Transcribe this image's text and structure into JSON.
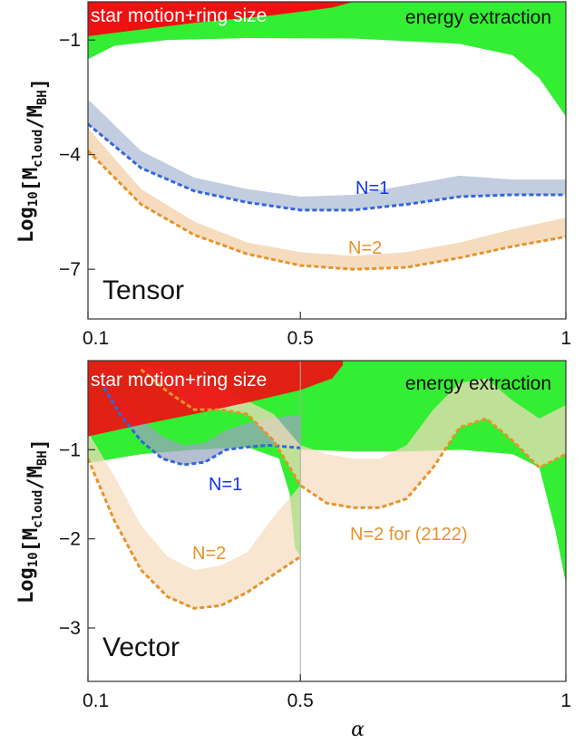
{
  "chart_data": [
    {
      "type": "area",
      "panel_name": "Tensor",
      "xlabel": "",
      "ylabel": {
        "prefix": "Log",
        "sub1": "10",
        "mid": "[M",
        "sub2": "cloud",
        "slash": "/M",
        "sub3": "BH",
        "suffix": "]"
      },
      "xlim": [
        0.1,
        1.0
      ],
      "ylim": [
        -8.3,
        0.0
      ],
      "xticks": [
        0.1,
        0.5,
        1
      ],
      "xtick_labels": [
        "0.1",
        "0.5",
        "1"
      ],
      "yticks": [
        -1,
        -4,
        -7
      ],
      "ytick_labels": [
        "−1",
        "−4",
        "−7"
      ],
      "regions": [
        {
          "name": "energy extraction",
          "color": "#33ee33",
          "lower": {
            "x": [
              0.1,
              0.15,
              0.25,
              0.4,
              0.6,
              0.8,
              0.9,
              0.95,
              0.98,
              1.0
            ],
            "y": [
              -1.5,
              -1.15,
              -1.0,
              -0.95,
              -0.96,
              -1.1,
              -1.4,
              -2.0,
              -2.6,
              -3.0
            ]
          },
          "upper": -0.25
        },
        {
          "name": "star motion+ring size",
          "color": "#ee1111",
          "x": [
            0.1,
            0.3,
            0.45,
            0.56,
            0.6
          ],
          "y": [
            -0.9,
            -0.55,
            -0.35,
            -0.15,
            0.0
          ]
        }
      ],
      "series": [
        {
          "name": "N=1",
          "color": "#3366dd",
          "band_color": "#c3cde0",
          "x": [
            0.1,
            0.2,
            0.3,
            0.4,
            0.5,
            0.6,
            0.7,
            0.8,
            0.9,
            1.0
          ],
          "lower": [
            -3.2,
            -4.35,
            -4.95,
            -5.25,
            -5.45,
            -5.45,
            -5.3,
            -5.1,
            -5.05,
            -5.05
          ],
          "upper": [
            -2.55,
            -3.9,
            -4.6,
            -4.9,
            -5.1,
            -5.05,
            -4.8,
            -4.55,
            -4.65,
            -4.65
          ]
        },
        {
          "name": "N=2",
          "color": "#e8922a",
          "band_color": "#f5dcbe",
          "x": [
            0.1,
            0.2,
            0.3,
            0.4,
            0.5,
            0.6,
            0.7,
            0.8,
            0.9,
            1.0
          ],
          "lower": [
            -3.9,
            -5.3,
            -6.1,
            -6.6,
            -6.9,
            -7.0,
            -6.95,
            -6.7,
            -6.4,
            -6.15
          ],
          "upper": [
            -3.3,
            -4.9,
            -5.75,
            -6.3,
            -6.55,
            -6.65,
            -6.55,
            -6.3,
            -5.95,
            -5.65
          ]
        }
      ]
    },
    {
      "type": "area",
      "panel_name": "Vector",
      "xlabel": "α",
      "ylabel": {
        "prefix": "Log",
        "sub1": "10",
        "mid": "[M",
        "sub2": "cloud",
        "slash": "/M",
        "sub3": "BH",
        "suffix": "]"
      },
      "xlim": [
        0.1,
        1.0
      ],
      "ylim": [
        -3.6,
        0.0
      ],
      "xticks": [
        0.1,
        0.5,
        1
      ],
      "xtick_labels": [
        "0.1",
        "0.5",
        "1"
      ],
      "yticks": [
        -1,
        -2,
        -3
      ],
      "ytick_labels": [
        "−1",
        "−2",
        "−3"
      ],
      "regions": [
        {
          "name": "energy extraction",
          "color": "#33ee33",
          "lower": {
            "x": [
              0.1,
              0.2,
              0.3,
              0.4,
              0.46,
              0.48,
              0.49,
              0.5,
              0.5,
              0.52,
              0.6,
              0.7,
              0.8,
              0.9,
              0.95,
              0.98,
              1.0
            ],
            "y": [
              -1.15,
              -1.05,
              -1.0,
              -0.97,
              -1.1,
              -1.5,
              -2.1,
              -2.2,
              -1.0,
              -1.0,
              -1.02,
              -1.02,
              -1.0,
              -1.05,
              -1.2,
              -1.9,
              -2.5
            ]
          },
          "upper": -0.05
        },
        {
          "name": "star motion+ring size",
          "color": "#ee1111",
          "x": [
            0.1,
            0.2,
            0.3,
            0.4,
            0.5,
            0.56,
            0.58
          ],
          "y": [
            -0.85,
            -0.72,
            -0.6,
            -0.47,
            -0.33,
            -0.2,
            -0.05
          ]
        }
      ],
      "series": [
        {
          "name": "N=1",
          "color": "#3366dd",
          "band_color": "#9aa5c0",
          "x": [
            0.13,
            0.16,
            0.2,
            0.24,
            0.28,
            0.32,
            0.36,
            0.4,
            0.44,
            0.48,
            0.5
          ],
          "lower": [
            -0.3,
            -0.6,
            -0.9,
            -1.1,
            -1.17,
            -1.14,
            -1.0,
            -0.97,
            -0.95,
            -0.97,
            -0.98
          ],
          "upper": [
            -0.2,
            -0.45,
            -0.65,
            -0.85,
            -0.95,
            -0.92,
            -0.78,
            -0.7,
            -0.65,
            -0.62,
            -0.62
          ]
        },
        {
          "name": "N=2",
          "color": "#e8922a",
          "band_color": "#f5dcbe",
          "x": [
            0.1,
            0.15,
            0.2,
            0.25,
            0.3,
            0.35,
            0.4,
            0.45,
            0.5
          ],
          "lower": [
            -1.1,
            -1.8,
            -2.35,
            -2.65,
            -2.78,
            -2.75,
            -2.6,
            -2.4,
            -2.2
          ],
          "upper": [
            -0.8,
            -1.3,
            -1.85,
            -2.2,
            -2.35,
            -2.3,
            -2.15,
            -1.75,
            -1.4
          ]
        },
        {
          "name": "N=2 for (2122)",
          "color": "#e8922a",
          "band_color": "#f5dcbe",
          "x": [
            0.2,
            0.25,
            0.3,
            0.35,
            0.4,
            0.45,
            0.5,
            0.55,
            0.6,
            0.65,
            0.7,
            0.75,
            0.8,
            0.85,
            0.9,
            0.95,
            1.0
          ],
          "lower": [
            -0.1,
            -0.35,
            -0.55,
            -0.55,
            -0.6,
            -0.9,
            -1.4,
            -1.6,
            -1.65,
            -1.65,
            -1.55,
            -1.2,
            -0.75,
            -0.65,
            -0.9,
            -1.2,
            -1.05
          ],
          "upper": [
            -0.05,
            -0.1,
            -0.2,
            -0.3,
            -0.45,
            -0.6,
            -0.95,
            -1.05,
            -1.1,
            -1.1,
            -0.95,
            -0.55,
            -0.25,
            -0.2,
            -0.45,
            -0.65,
            -0.5
          ]
        }
      ]
    }
  ]
}
